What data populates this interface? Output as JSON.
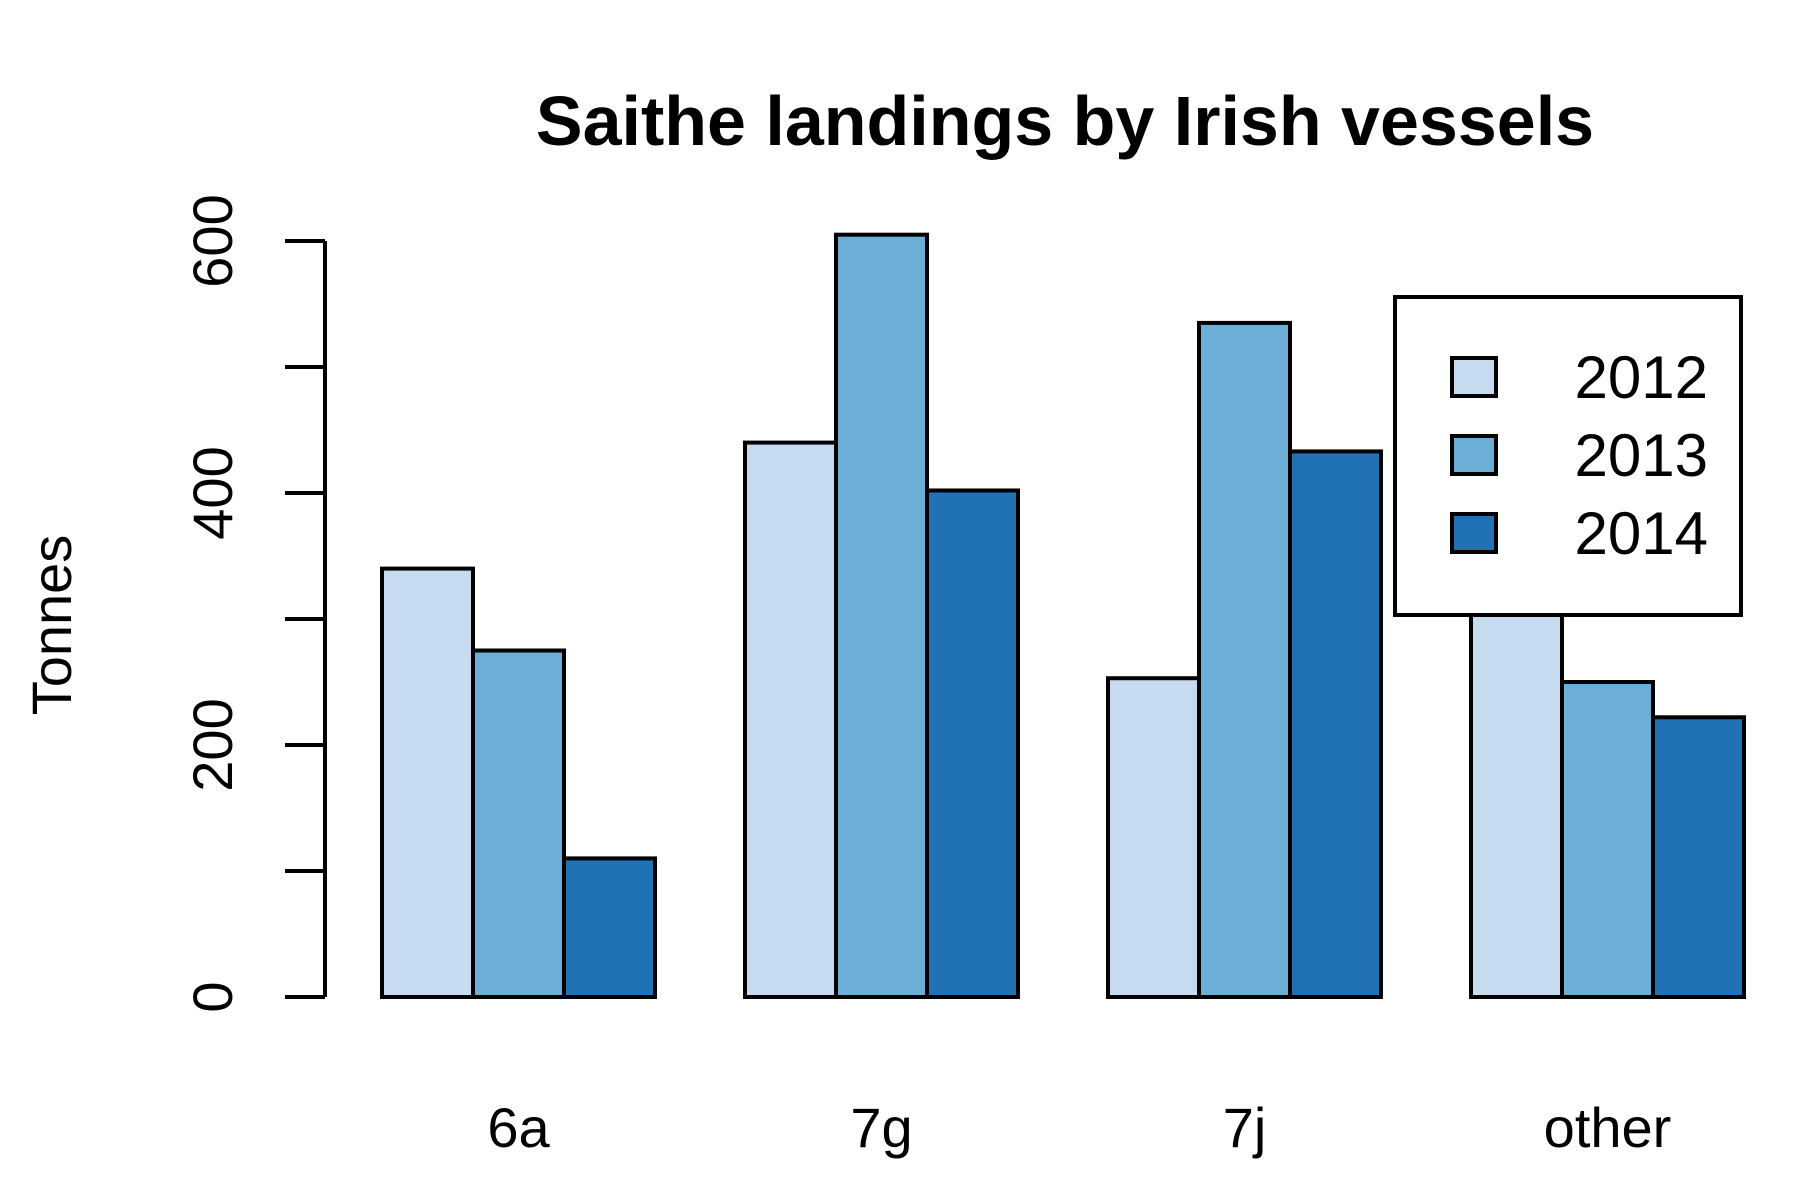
{
  "chart_data": {
    "type": "bar",
    "title": "Saithe landings by Irish vessels",
    "xlabel": "",
    "ylabel": "Tonnes",
    "categories": [
      "6a",
      "7g",
      "7j",
      "other"
    ],
    "series": [
      {
        "name": "2012",
        "values": [
          340,
          440,
          253,
          400
        ],
        "color": "#c6dbef"
      },
      {
        "name": "2013",
        "values": [
          275,
          605,
          535,
          250
        ],
        "color": "#6baed6"
      },
      {
        "name": "2014",
        "values": [
          110,
          402,
          433,
          222
        ],
        "color": "#2171b5"
      }
    ],
    "ylim": [
      0,
      600
    ],
    "yticks": [
      0,
      100,
      200,
      300,
      400,
      500,
      600
    ],
    "ytick_labels": [
      "0",
      "",
      "200",
      "",
      "400",
      "",
      "600"
    ],
    "grid": false,
    "legend_position": "top-right"
  }
}
